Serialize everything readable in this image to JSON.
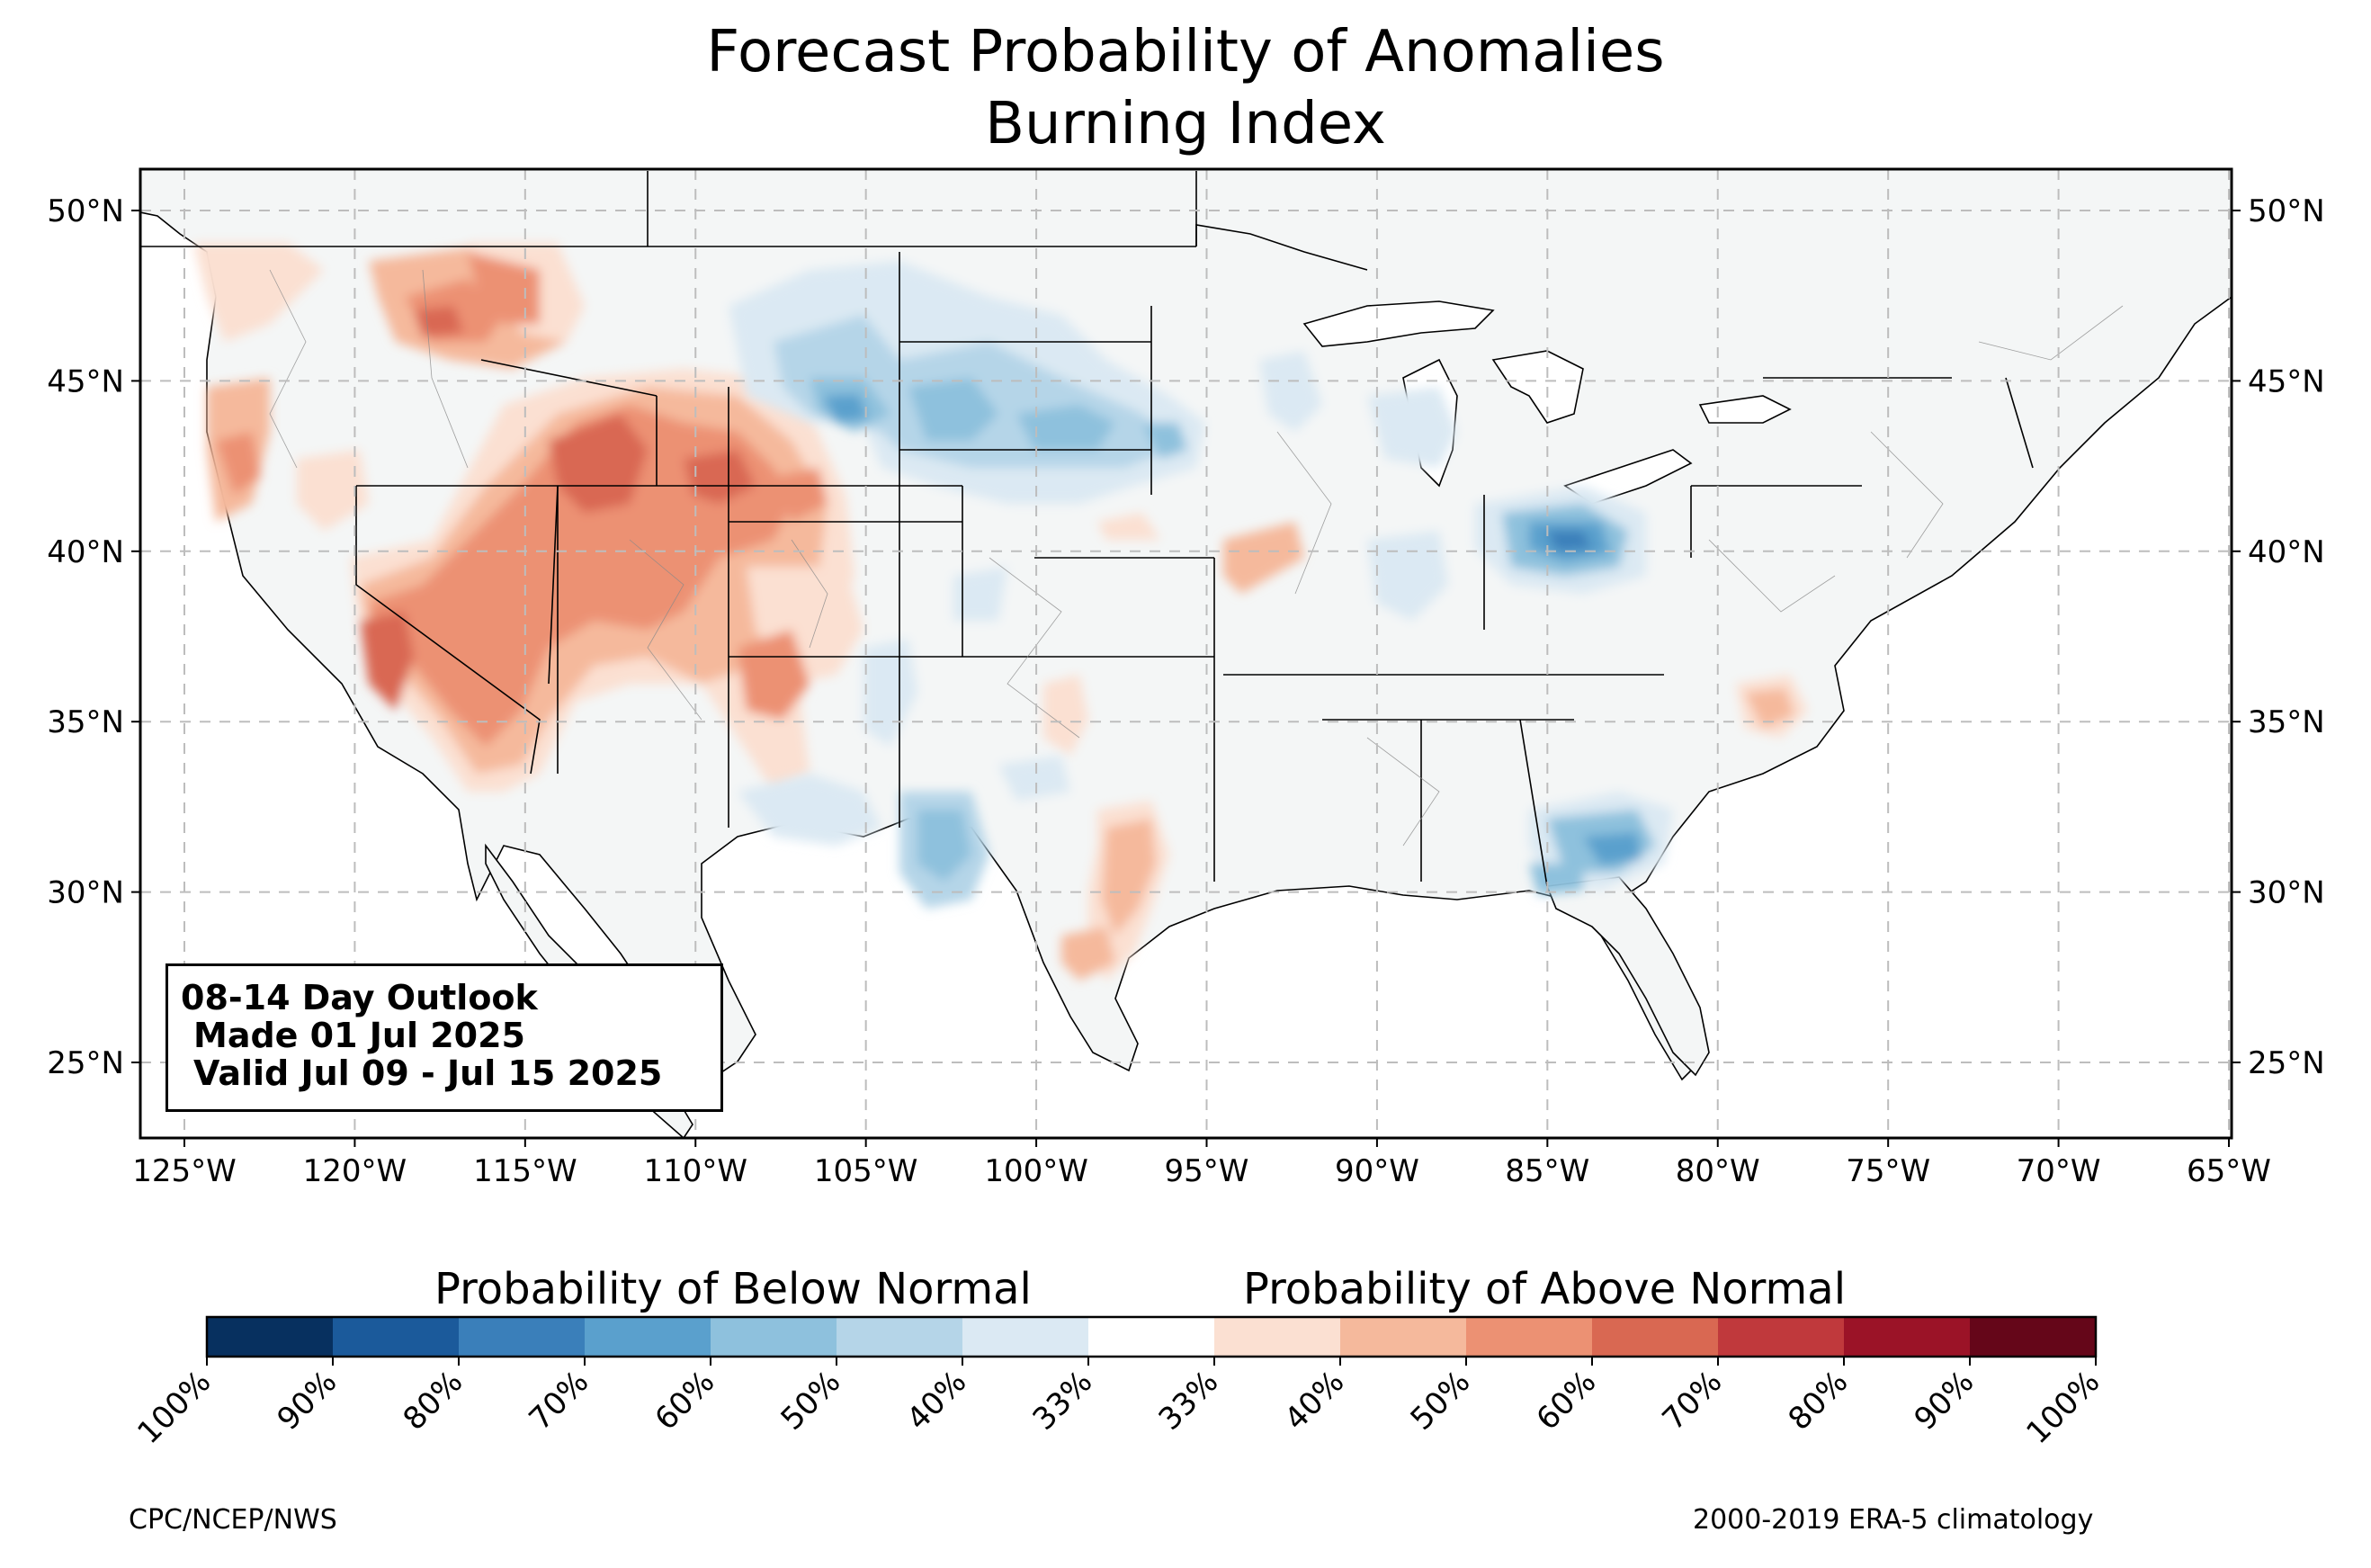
{
  "title": "Forecast Probability of Anomalies",
  "subtitle": "Burning Index",
  "outlook": {
    "line1": "08-14 Day Outlook",
    "line2": "Made 01 Jul 2025",
    "line3": "Valid Jul 09 - Jul 15 2025"
  },
  "axes": {
    "lat_labels": [
      "50°N",
      "45°N",
      "40°N",
      "35°N",
      "30°N",
      "25°N"
    ],
    "lon_labels": [
      "125°W",
      "120°W",
      "115°W",
      "110°W",
      "105°W",
      "100°W",
      "95°W",
      "90°W",
      "85°W",
      "80°W",
      "75°W",
      "70°W",
      "65°W"
    ],
    "lat_values": [
      50,
      45,
      40,
      35,
      30,
      25
    ],
    "lon_values": [
      -125,
      -120,
      -115,
      -110,
      -105,
      -100,
      -95,
      -90,
      -85,
      -80,
      -75,
      -70,
      -65
    ],
    "grid": true
  },
  "colorbar": {
    "below_title": "Probability of Below Normal",
    "above_title": "Probability of Above Normal",
    "tick_labels": [
      "100%",
      "90%",
      "80%",
      "70%",
      "60%",
      "50%",
      "40%",
      "33%",
      "33%",
      "40%",
      "50%",
      "60%",
      "70%",
      "80%",
      "90%",
      "100%"
    ],
    "colors": [
      "#07305f",
      "#1b5a9b",
      "#3a7fba",
      "#5aa0cd",
      "#8ec1dd",
      "#b5d5e8",
      "#dbe9f3",
      "#ffffff",
      "#fbe0d2",
      "#f5b99c",
      "#ec9173",
      "#d96852",
      "#c0393c",
      "#9b1327",
      "#650619"
    ]
  },
  "footer": {
    "left": "CPC/NCEP/NWS",
    "right": "2000-2019 ERA-5 climatology"
  }
}
